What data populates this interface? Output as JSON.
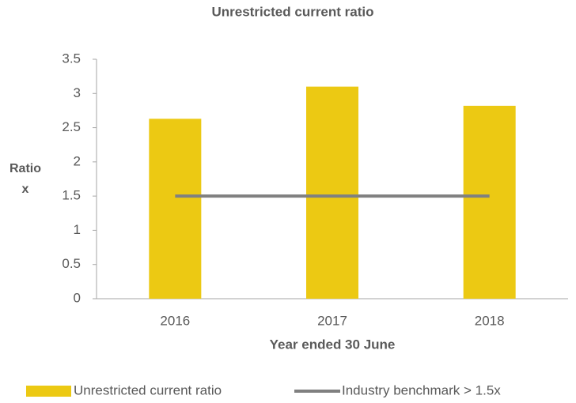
{
  "chart_data": {
    "type": "bar",
    "title": "Unrestricted current ratio",
    "x_label": "Year ended 30 June",
    "y_label": "Ratio x",
    "categories": [
      "2016",
      "2017",
      "2018"
    ],
    "series": [
      {
        "name": "Unrestricted current ratio",
        "type": "bar",
        "color": "#ecc913",
        "values": [
          2.63,
          3.1,
          2.82
        ]
      },
      {
        "name": "Industry benchmark > 1.5x",
        "type": "line",
        "color": "#808080",
        "values": [
          1.5,
          1.5,
          1.5
        ]
      }
    ],
    "ylim": [
      0,
      3.5
    ],
    "yticks": [
      0,
      0.5,
      1,
      1.5,
      2,
      2.5,
      3,
      3.5
    ],
    "grid": false,
    "legend": "bottom"
  }
}
